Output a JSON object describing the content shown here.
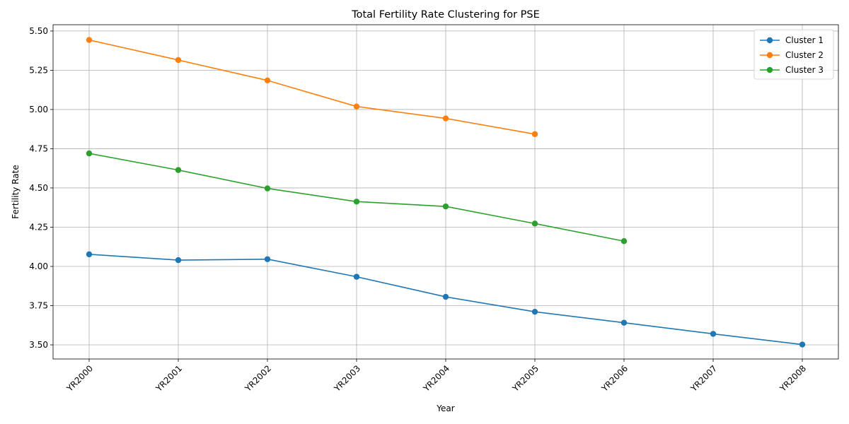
{
  "chart_data": {
    "type": "line",
    "title": "Total Fertility Rate Clustering for PSE",
    "xlabel": "Year",
    "ylabel": "Fertility Rate",
    "categories": [
      "YR2000",
      "YR2001",
      "YR2002",
      "YR2003",
      "YR2004",
      "YR2005",
      "YR2006",
      "YR2007",
      "YR2008"
    ],
    "ylim": [
      3.41,
      5.54
    ],
    "yticks": [
      "3.50",
      "3.75",
      "4.00",
      "4.25",
      "4.50",
      "4.75",
      "5.00",
      "5.25",
      "5.50"
    ],
    "grid": true,
    "legend_position": "top-right",
    "series": [
      {
        "name": "Cluster 1",
        "color": "#1f77b4",
        "values": [
          4.077,
          4.04,
          4.046,
          3.934,
          3.806,
          3.711,
          3.641,
          3.57,
          3.502
        ]
      },
      {
        "name": "Cluster 2",
        "color": "#ff7f0e",
        "values": [
          5.443,
          5.315,
          5.185,
          5.019,
          4.943,
          4.843,
          null,
          null,
          null
        ]
      },
      {
        "name": "Cluster 3",
        "color": "#2ca02c",
        "values": [
          4.72,
          4.614,
          4.497,
          4.413,
          4.382,
          4.273,
          4.161,
          null,
          null
        ]
      }
    ]
  }
}
